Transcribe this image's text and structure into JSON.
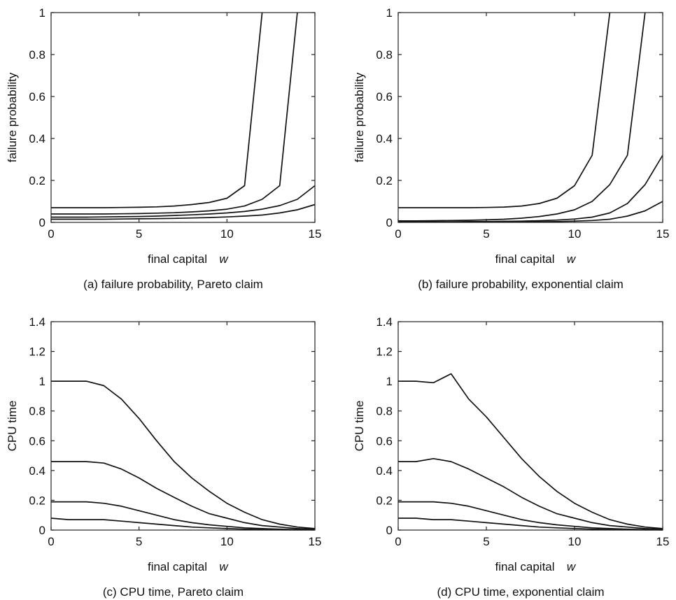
{
  "chart_data": [
    {
      "type": "line",
      "caption": "(a) failure probability, Pareto claim",
      "xlabel": "final capital",
      "xlabel_var": "w",
      "ylabel": "failure probability",
      "xlim": [
        0,
        15
      ],
      "ylim": [
        0,
        1
      ],
      "xticks": [
        "0",
        "5",
        "10",
        "15"
      ],
      "yticks": [
        "0",
        "0.2",
        "0.4",
        "0.6",
        "0.8",
        "1"
      ],
      "series": [
        {
          "x": [
            0,
            1,
            2,
            3,
            4,
            5,
            6,
            7,
            8,
            9,
            10,
            11,
            12
          ],
          "values": [
            0.07,
            0.07,
            0.07,
            0.07,
            0.071,
            0.072,
            0.074,
            0.078,
            0.085,
            0.095,
            0.115,
            0.175,
            1.0
          ]
        },
        {
          "x": [
            0,
            1,
            2,
            3,
            4,
            5,
            6,
            7,
            8,
            9,
            10,
            11,
            12,
            13,
            14
          ],
          "values": [
            0.04,
            0.04,
            0.04,
            0.04,
            0.041,
            0.042,
            0.044,
            0.046,
            0.05,
            0.055,
            0.063,
            0.078,
            0.11,
            0.175,
            1.0
          ]
        },
        {
          "x": [
            0,
            1,
            2,
            3,
            4,
            5,
            6,
            7,
            8,
            9,
            10,
            11,
            12,
            13,
            14,
            15
          ],
          "values": [
            0.025,
            0.025,
            0.025,
            0.026,
            0.027,
            0.028,
            0.03,
            0.033,
            0.036,
            0.04,
            0.045,
            0.052,
            0.063,
            0.08,
            0.11,
            0.175
          ]
        },
        {
          "x": [
            0,
            1,
            2,
            3,
            4,
            5,
            6,
            7,
            8,
            9,
            10,
            11,
            12,
            13,
            14,
            15
          ],
          "values": [
            0.015,
            0.015,
            0.015,
            0.015,
            0.016,
            0.017,
            0.018,
            0.019,
            0.021,
            0.023,
            0.026,
            0.03,
            0.035,
            0.045,
            0.06,
            0.085
          ]
        }
      ]
    },
    {
      "type": "line",
      "caption": "(b) failure probability, exponential claim",
      "xlabel": "final capital",
      "xlabel_var": "w",
      "ylabel": "failure probability",
      "xlim": [
        0,
        15
      ],
      "ylim": [
        0,
        1
      ],
      "xticks": [
        "0",
        "5",
        "10",
        "15"
      ],
      "yticks": [
        "0",
        "0.2",
        "0.4",
        "0.6",
        "0.8",
        "1"
      ],
      "series": [
        {
          "x": [
            0,
            1,
            2,
            3,
            4,
            5,
            6,
            7,
            8,
            9,
            10,
            11,
            12
          ],
          "values": [
            0.07,
            0.07,
            0.07,
            0.07,
            0.07,
            0.071,
            0.073,
            0.078,
            0.09,
            0.115,
            0.175,
            0.32,
            1.0
          ]
        },
        {
          "x": [
            0,
            1,
            2,
            3,
            4,
            5,
            6,
            7,
            8,
            9,
            10,
            11,
            12,
            13,
            14
          ],
          "values": [
            0.007,
            0.007,
            0.008,
            0.009,
            0.01,
            0.012,
            0.015,
            0.02,
            0.028,
            0.04,
            0.06,
            0.1,
            0.18,
            0.32,
            1.0
          ]
        },
        {
          "x": [
            0,
            1,
            2,
            3,
            4,
            5,
            6,
            7,
            8,
            9,
            10,
            11,
            12,
            13,
            14,
            15
          ],
          "values": [
            0.003,
            0.003,
            0.003,
            0.003,
            0.004,
            0.004,
            0.005,
            0.006,
            0.008,
            0.011,
            0.016,
            0.025,
            0.045,
            0.09,
            0.18,
            0.32
          ]
        },
        {
          "x": [
            0,
            1,
            2,
            3,
            4,
            5,
            6,
            7,
            8,
            9,
            10,
            11,
            12,
            13,
            14,
            15
          ],
          "values": [
            0.001,
            0.001,
            0.001,
            0.001,
            0.001,
            0.002,
            0.002,
            0.002,
            0.003,
            0.004,
            0.006,
            0.009,
            0.015,
            0.03,
            0.055,
            0.1
          ]
        }
      ]
    },
    {
      "type": "line",
      "caption": "(c) CPU time, Pareto claim",
      "xlabel": "final capital",
      "xlabel_var": "w",
      "ylabel": "CPU time",
      "xlim": [
        0,
        15
      ],
      "ylim": [
        0,
        1.4
      ],
      "xticks": [
        "0",
        "5",
        "10",
        "15"
      ],
      "yticks": [
        "0",
        "0.2",
        "0.4",
        "0.6",
        "0.8",
        "1",
        "1.2",
        "1.4"
      ],
      "series": [
        {
          "x": [
            0,
            1,
            2,
            3,
            4,
            5,
            6,
            7,
            8,
            9,
            10,
            11,
            12,
            13,
            14,
            15
          ],
          "values": [
            1.0,
            1.0,
            1.0,
            0.97,
            0.88,
            0.75,
            0.6,
            0.46,
            0.35,
            0.26,
            0.18,
            0.12,
            0.07,
            0.04,
            0.02,
            0.01
          ]
        },
        {
          "x": [
            0,
            1,
            2,
            3,
            4,
            5,
            6,
            7,
            8,
            9,
            10,
            11,
            12,
            13,
            14,
            15
          ],
          "values": [
            0.46,
            0.46,
            0.46,
            0.45,
            0.41,
            0.35,
            0.28,
            0.22,
            0.16,
            0.11,
            0.08,
            0.05,
            0.03,
            0.02,
            0.01,
            0.005
          ]
        },
        {
          "x": [
            0,
            1,
            2,
            3,
            4,
            5,
            6,
            7,
            8,
            9,
            10,
            11,
            12,
            13,
            14,
            15
          ],
          "values": [
            0.19,
            0.19,
            0.19,
            0.18,
            0.16,
            0.13,
            0.1,
            0.07,
            0.05,
            0.035,
            0.025,
            0.015,
            0.01,
            0.006,
            0.003,
            0.002
          ]
        },
        {
          "x": [
            0,
            1,
            2,
            3,
            4,
            5,
            6,
            7,
            8,
            9,
            10,
            11,
            12,
            13,
            14,
            15
          ],
          "values": [
            0.08,
            0.07,
            0.07,
            0.07,
            0.06,
            0.05,
            0.04,
            0.03,
            0.02,
            0.015,
            0.01,
            0.006,
            0.004,
            0.002,
            0.001,
            0.001
          ]
        }
      ]
    },
    {
      "type": "line",
      "caption": "(d) CPU time, exponential claim",
      "xlabel": "final capital",
      "xlabel_var": "w",
      "ylabel": "CPU time",
      "xlim": [
        0,
        15
      ],
      "ylim": [
        0,
        1.4
      ],
      "xticks": [
        "0",
        "5",
        "10",
        "15"
      ],
      "yticks": [
        "0",
        "0.2",
        "0.4",
        "0.6",
        "0.8",
        "1",
        "1.2",
        "1.4"
      ],
      "series": [
        {
          "x": [
            0,
            1,
            2,
            3,
            4,
            5,
            6,
            7,
            8,
            9,
            10,
            11,
            12,
            13,
            14,
            15
          ],
          "values": [
            1.0,
            1.0,
            0.99,
            1.05,
            0.88,
            0.76,
            0.62,
            0.48,
            0.36,
            0.26,
            0.18,
            0.12,
            0.07,
            0.04,
            0.02,
            0.01
          ]
        },
        {
          "x": [
            0,
            1,
            2,
            3,
            4,
            5,
            6,
            7,
            8,
            9,
            10,
            11,
            12,
            13,
            14,
            15
          ],
          "values": [
            0.46,
            0.46,
            0.48,
            0.46,
            0.41,
            0.35,
            0.29,
            0.22,
            0.16,
            0.11,
            0.08,
            0.05,
            0.03,
            0.02,
            0.01,
            0.005
          ]
        },
        {
          "x": [
            0,
            1,
            2,
            3,
            4,
            5,
            6,
            7,
            8,
            9,
            10,
            11,
            12,
            13,
            14,
            15
          ],
          "values": [
            0.19,
            0.19,
            0.19,
            0.18,
            0.16,
            0.13,
            0.1,
            0.07,
            0.05,
            0.035,
            0.025,
            0.015,
            0.01,
            0.006,
            0.003,
            0.002
          ]
        },
        {
          "x": [
            0,
            1,
            2,
            3,
            4,
            5,
            6,
            7,
            8,
            9,
            10,
            11,
            12,
            13,
            14,
            15
          ],
          "values": [
            0.08,
            0.08,
            0.07,
            0.07,
            0.06,
            0.05,
            0.04,
            0.03,
            0.02,
            0.015,
            0.01,
            0.006,
            0.004,
            0.002,
            0.001,
            0.001
          ]
        }
      ]
    }
  ]
}
